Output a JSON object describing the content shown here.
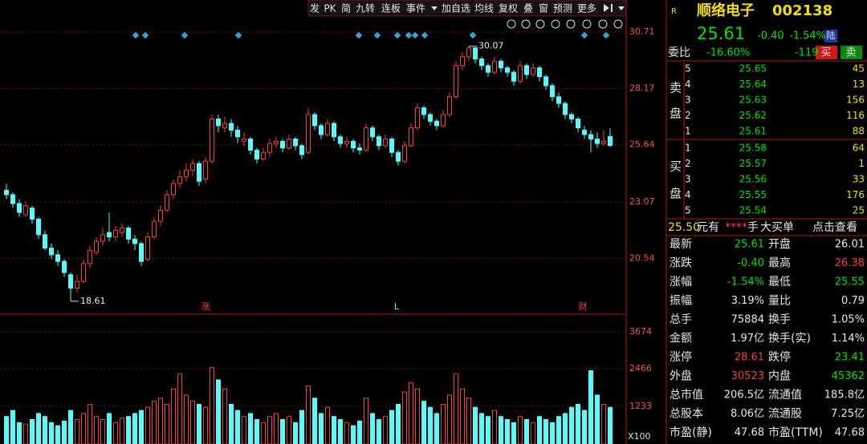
{
  "toolbar": [
    "发",
    "PK",
    "简",
    "九转",
    "连板",
    "事件",
    "加自选",
    "均线",
    "复权",
    "叠",
    "窗",
    "预测",
    "更多"
  ],
  "chart_data": {
    "type": "candlestick",
    "up_color": "#ff3c3c",
    "down_color": "#54fcfc",
    "candles": [
      [
        23.6,
        23.9,
        23.2,
        23.4
      ],
      [
        23.4,
        23.5,
        22.8,
        23.0
      ],
      [
        23.0,
        23.2,
        22.4,
        22.6
      ],
      [
        22.5,
        23.1,
        22.4,
        22.9
      ],
      [
        22.8,
        22.9,
        22.1,
        22.3
      ],
      [
        22.3,
        22.4,
        21.4,
        21.6
      ],
      [
        21.6,
        21.8,
        20.9,
        21.0
      ],
      [
        21.0,
        21.2,
        20.5,
        20.7
      ],
      [
        20.7,
        20.9,
        20.2,
        20.4
      ],
      [
        20.4,
        20.5,
        19.7,
        19.9
      ],
      [
        19.8,
        19.9,
        18.61,
        19.2
      ],
      [
        19.2,
        19.8,
        19.0,
        19.5
      ],
      [
        19.5,
        20.5,
        19.4,
        20.3
      ],
      [
        20.3,
        21.1,
        20.1,
        20.9
      ],
      [
        20.8,
        21.5,
        20.7,
        21.3
      ],
      [
        21.3,
        21.9,
        21.1,
        21.6
      ],
      [
        21.7,
        22.6,
        21.3,
        21.5
      ],
      [
        21.5,
        22.0,
        21.3,
        21.8
      ],
      [
        21.7,
        22.1,
        21.5,
        21.9
      ],
      [
        21.9,
        22.0,
        21.2,
        21.4
      ],
      [
        21.4,
        21.6,
        20.9,
        21.2
      ],
      [
        21.2,
        21.3,
        20.2,
        20.4
      ],
      [
        20.5,
        21.7,
        20.4,
        21.5
      ],
      [
        21.5,
        22.4,
        21.4,
        22.2
      ],
      [
        22.2,
        22.9,
        22.0,
        22.7
      ],
      [
        22.7,
        23.6,
        22.6,
        23.4
      ],
      [
        23.4,
        24.1,
        23.2,
        23.9
      ],
      [
        23.9,
        24.5,
        23.7,
        24.2
      ],
      [
        24.2,
        24.8,
        24.0,
        24.5
      ],
      [
        24.5,
        25.0,
        24.2,
        24.8
      ],
      [
        24.8,
        24.9,
        23.8,
        24.0
      ],
      [
        24.1,
        25.1,
        23.9,
        24.9
      ],
      [
        24.9,
        27.0,
        24.8,
        26.8
      ],
      [
        26.8,
        27.0,
        26.2,
        26.5
      ],
      [
        26.4,
        26.9,
        26.2,
        26.6
      ],
      [
        26.6,
        26.8,
        26.0,
        26.3
      ],
      [
        26.3,
        26.5,
        25.7,
        26.0
      ],
      [
        25.8,
        26.2,
        25.6,
        25.9
      ],
      [
        25.9,
        26.0,
        25.2,
        25.4
      ],
      [
        25.4,
        25.5,
        24.8,
        25.0
      ],
      [
        25.0,
        25.5,
        24.9,
        25.3
      ],
      [
        25.3,
        25.9,
        25.1,
        25.7
      ],
      [
        25.7,
        26.0,
        25.5,
        25.8
      ],
      [
        25.8,
        25.9,
        25.3,
        25.5
      ],
      [
        25.5,
        26.1,
        25.4,
        25.9
      ],
      [
        25.9,
        26.0,
        25.4,
        25.6
      ],
      [
        25.6,
        25.7,
        25.0,
        25.2
      ],
      [
        25.3,
        27.3,
        25.2,
        27.0
      ],
      [
        27.0,
        27.1,
        26.3,
        26.5
      ],
      [
        26.5,
        26.6,
        25.9,
        26.1
      ],
      [
        26.1,
        26.8,
        26.0,
        26.6
      ],
      [
        26.6,
        26.7,
        25.8,
        26.0
      ],
      [
        26.0,
        26.1,
        25.5,
        25.7
      ],
      [
        25.7,
        26.0,
        25.5,
        25.8
      ],
      [
        25.8,
        25.9,
        25.3,
        25.5
      ],
      [
        25.5,
        25.7,
        25.2,
        25.4
      ],
      [
        25.4,
        26.6,
        25.3,
        26.4
      ],
      [
        26.4,
        26.5,
        25.8,
        26.0
      ],
      [
        26.0,
        26.1,
        25.4,
        25.6
      ],
      [
        25.6,
        26.1,
        25.5,
        25.9
      ],
      [
        25.9,
        26.0,
        25.1,
        25.3
      ],
      [
        25.3,
        25.4,
        24.7,
        24.9
      ],
      [
        24.9,
        25.8,
        24.8,
        25.6
      ],
      [
        25.6,
        26.6,
        25.5,
        26.4
      ],
      [
        26.4,
        27.5,
        26.3,
        27.3
      ],
      [
        27.3,
        27.4,
        26.8,
        27.0
      ],
      [
        27.0,
        27.1,
        26.5,
        26.7
      ],
      [
        26.7,
        26.8,
        26.3,
        26.5
      ],
      [
        26.5,
        27.2,
        26.4,
        27.0
      ],
      [
        27.0,
        28.0,
        26.9,
        27.8
      ],
      [
        27.8,
        29.4,
        27.7,
        29.2
      ],
      [
        29.2,
        29.8,
        29.0,
        29.6
      ],
      [
        29.6,
        30.07,
        29.4,
        30.0
      ],
      [
        30.0,
        30.0,
        29.3,
        29.5
      ],
      [
        29.5,
        29.6,
        29.0,
        29.2
      ],
      [
        29.2,
        29.3,
        28.7,
        28.9
      ],
      [
        28.9,
        29.6,
        28.8,
        29.4
      ],
      [
        29.4,
        29.5,
        28.9,
        29.1
      ],
      [
        29.1,
        29.2,
        28.7,
        28.9
      ],
      [
        28.9,
        29.0,
        28.3,
        28.5
      ],
      [
        28.5,
        29.4,
        28.4,
        29.2
      ],
      [
        29.2,
        29.3,
        28.6,
        28.8
      ],
      [
        28.8,
        29.3,
        28.7,
        29.1
      ],
      [
        29.1,
        29.2,
        28.5,
        28.7
      ],
      [
        28.7,
        28.8,
        28.1,
        28.3
      ],
      [
        28.3,
        28.4,
        27.6,
        27.8
      ],
      [
        27.8,
        28.0,
        27.3,
        27.5
      ],
      [
        27.5,
        27.6,
        26.8,
        27.0
      ],
      [
        27.0,
        27.1,
        26.6,
        26.8
      ],
      [
        26.8,
        26.9,
        26.2,
        26.4
      ],
      [
        26.3,
        26.5,
        25.9,
        26.1
      ],
      [
        26.1,
        26.3,
        25.3,
        25.9
      ],
      [
        25.9,
        26.2,
        25.5,
        25.7
      ],
      [
        25.7,
        26.3,
        25.6,
        25.8
      ],
      [
        26.01,
        26.38,
        25.55,
        25.61
      ]
    ],
    "volumes": [
      900,
      1100,
      700,
      650,
      800,
      1000,
      900,
      700,
      600,
      750,
      1100,
      800,
      1000,
      1300,
      900,
      800,
      1000,
      700,
      850,
      900,
      1000,
      1100,
      1200,
      1400,
      1500,
      1300,
      1800,
      2300,
      1600,
      1400,
      1300,
      1200,
      2500,
      2100,
      1800,
      1300,
      1100,
      900,
      1000,
      800,
      700,
      900,
      1000,
      800,
      900,
      700,
      1100,
      1900,
      1500,
      1000,
      1200,
      900,
      800,
      700,
      600,
      750,
      1500,
      1000,
      800,
      900,
      1100,
      1300,
      1700,
      2000,
      1800,
      1400,
      1200,
      1000,
      1300,
      1600,
      2300,
      1800,
      1500,
      1200,
      1000,
      900,
      1100,
      900,
      800,
      700,
      900,
      800,
      700,
      900,
      800,
      700,
      900,
      1000,
      1200,
      1300,
      1100,
      2400,
      1600,
      1300,
      1200
    ],
    "ylim": [
      18.1,
      32.15
    ],
    "yticks": [
      30.71,
      28.17,
      25.64,
      23.07,
      20.54
    ],
    "volume_ylim": [
      0,
      4171
    ],
    "volume_yticks": [
      3674,
      2466,
      1233
    ],
    "volume_unit": "X100",
    "event_flags": [
      "涨",
      "L",
      "财"
    ]
  },
  "quote": {
    "badge": "R",
    "name": "顺络电子",
    "code": "002138",
    "price": "25.61",
    "change": "-0.40",
    "pct": "-1.54%",
    "market": "陆",
    "ratio_label": "委比",
    "ratio": "-16.60%",
    "diff": "-119",
    "buy_btn": "买",
    "sell_btn": "卖",
    "sell_label": [
      "卖",
      "盘"
    ],
    "buy_label": [
      "买",
      "盘"
    ],
    "sell": [
      [
        "5",
        "25.65",
        "45"
      ],
      [
        "4",
        "25.64",
        "13"
      ],
      [
        "3",
        "25.63",
        "156"
      ],
      [
        "2",
        "25.62",
        "116"
      ],
      [
        "1",
        "25.61",
        "88"
      ]
    ],
    "buy": [
      [
        "1",
        "25.58",
        "64"
      ],
      [
        "2",
        "25.57",
        "1"
      ],
      [
        "3",
        "25.56",
        "33"
      ],
      [
        "4",
        "25.55",
        "176"
      ],
      [
        "5",
        "25.54",
        "25"
      ]
    ],
    "big_order": [
      "25.50",
      "元有",
      "****",
      "手",
      "大买单",
      "点击查看"
    ],
    "stats": [
      [
        "最新",
        "25.61",
        "开盘",
        "26.01"
      ],
      [
        "涨跌",
        "-0.40",
        "最高",
        "26.38"
      ],
      [
        "涨幅",
        "-1.54%",
        "最低",
        "25.55"
      ],
      [
        "振幅",
        "3.19%",
        "量比",
        "0.79"
      ],
      [
        "总手",
        "75884",
        "换手",
        "1.05%"
      ],
      [
        "金额",
        "1.97亿",
        "换手(实)",
        "1.14%"
      ],
      [
        "涨停",
        "28.61",
        "跌停",
        "23.41"
      ],
      [
        "外盘",
        "30523",
        "内盘",
        "45362"
      ],
      [
        "总市值",
        "206.5亿",
        "流通值",
        "185.8亿"
      ],
      [
        "总股本",
        "8.06亿",
        "流通股",
        "7.25亿"
      ],
      [
        "市盈(静)",
        "47.68",
        "市盈(TTM)",
        "47.68"
      ]
    ]
  }
}
